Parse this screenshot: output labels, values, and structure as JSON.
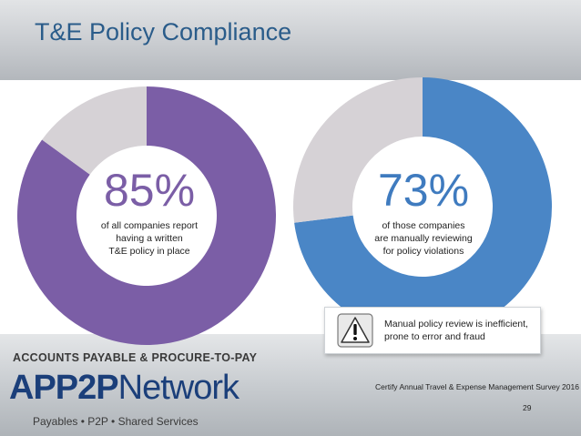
{
  "slide": {
    "title": "T&E Policy Compliance",
    "page_number": "29",
    "source": "Certify Annual Travel & Expense Management Survey 2016"
  },
  "colors": {
    "purple": "#7b5ea6",
    "blue": "#4a86c6",
    "gray": "#d6d2d6",
    "title_blue": "#2a5c8a"
  },
  "chart_data": [
    {
      "type": "pie",
      "style": "donut",
      "value_label": "85%",
      "caption": [
        "of all companies report",
        "having a written",
        "T&E policy in place"
      ],
      "slices": [
        {
          "value": 85,
          "color": "#7b5ea6"
        },
        {
          "value": 15,
          "color": "#d6d2d6"
        }
      ]
    },
    {
      "type": "pie",
      "style": "donut",
      "value_label": "73%",
      "caption": [
        "of those companies",
        "are manually reviewing",
        "for policy violations"
      ],
      "slices": [
        {
          "value": 73,
          "color": "#4a86c6"
        },
        {
          "value": 27,
          "color": "#d6d2d6"
        }
      ]
    }
  ],
  "callout": {
    "lines": [
      "Manual policy review is inefficient,",
      "prone to error and fraud"
    ],
    "icon": "warning-icon"
  },
  "logo": {
    "top_line": "ACCOUNTS PAYABLE & PROCURE-TO-PAY",
    "brand_bold": "APP2P",
    "brand_light": "Network",
    "tagline": "Payables  •  P2P  •  Shared Services"
  }
}
